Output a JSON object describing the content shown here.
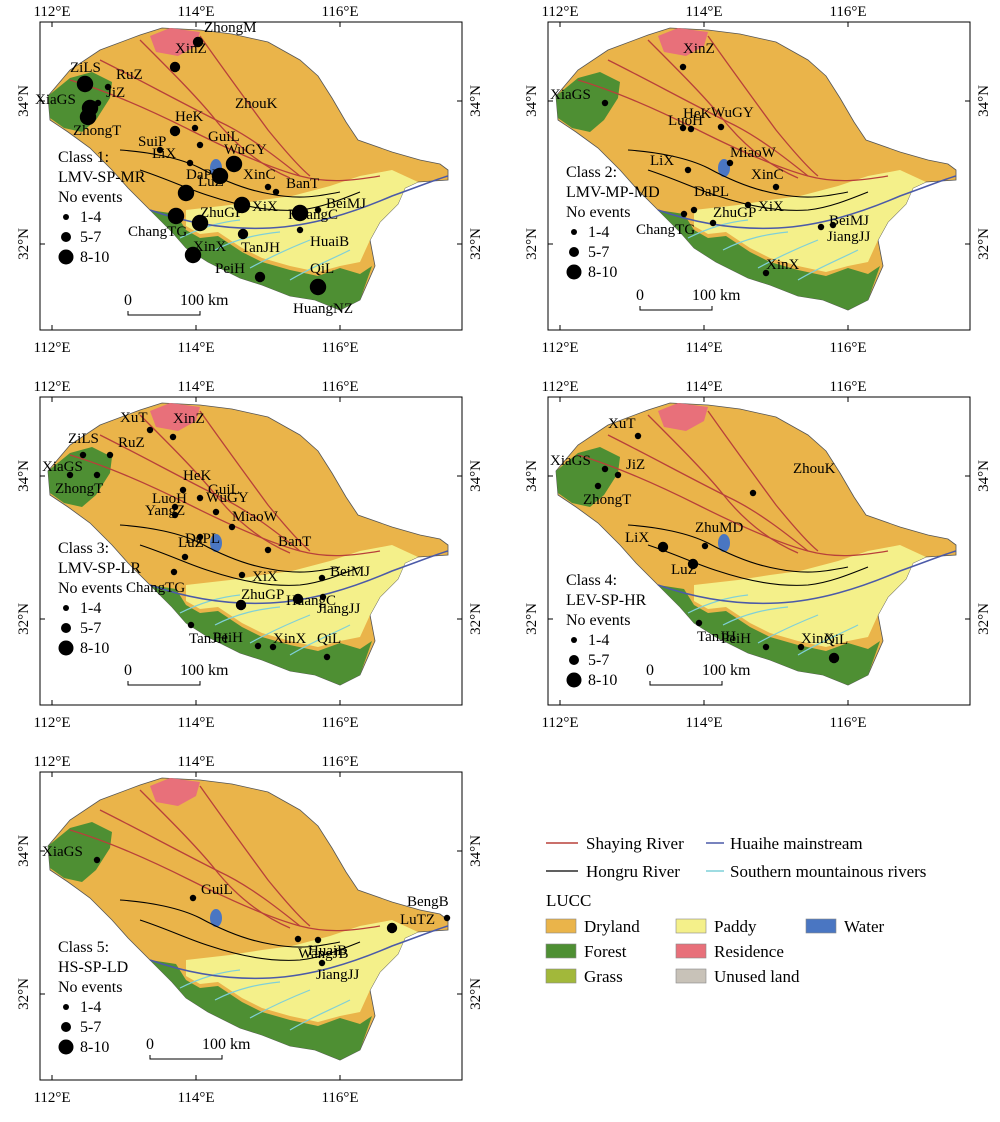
{
  "axes": {
    "lon_labels": [
      "112°E",
      "114°E",
      "116°E"
    ],
    "lat_labels": [
      "34°N",
      "32°N"
    ]
  },
  "panels": [
    {
      "class_label": "Class 1:",
      "class_code": "LMV-SP-MR",
      "events_label": "No events",
      "sizes": [
        "1-4",
        "5-7",
        "8-10"
      ],
      "scalebar": {
        "start": "0",
        "end": "100 km"
      },
      "stations": [
        {
          "name": "ZhongM",
          "size": 2
        },
        {
          "name": "ZiLS",
          "size": 3
        },
        {
          "name": "RuZ",
          "size": 1
        },
        {
          "name": "XinZ",
          "size": 2
        },
        {
          "name": "XiaGS",
          "size": 3
        },
        {
          "name": "JiZ",
          "size": 1
        },
        {
          "name": "ZhongT",
          "size": 3
        },
        {
          "name": "HeK",
          "size": 2
        },
        {
          "name": "ZhouK",
          "size": 1
        },
        {
          "name": "GuiL",
          "size": 1
        },
        {
          "name": "SuiP",
          "size": 1
        },
        {
          "name": "WuGY",
          "size": 3
        },
        {
          "name": "LiX",
          "size": 1
        },
        {
          "name": "LuZ",
          "size": 3
        },
        {
          "name": "XinC",
          "size": 1
        },
        {
          "name": "BanT",
          "size": 1
        },
        {
          "name": "DaPL",
          "size": 3
        },
        {
          "name": "XiX",
          "size": 3
        },
        {
          "name": "ZhuGP",
          "size": 3
        },
        {
          "name": "HuangC",
          "size": 3
        },
        {
          "name": "BeiMJ",
          "size": 1
        },
        {
          "name": "ChangTG",
          "size": 3
        },
        {
          "name": "TanJH",
          "size": 2
        },
        {
          "name": "HuaiB",
          "size": 1
        },
        {
          "name": "PeiH",
          "size": 2
        },
        {
          "name": "XinX",
          "size": 3
        },
        {
          "name": "QiL",
          "size": 1
        },
        {
          "name": "HuangNZ",
          "size": 3
        }
      ]
    },
    {
      "class_label": "Class 2:",
      "class_code": "LMV-MP-MD",
      "events_label": "No events",
      "sizes": [
        "1-4",
        "5-7",
        "8-10"
      ],
      "scalebar": {
        "start": "0",
        "end": "100 km"
      },
      "stations": [
        {
          "name": "XinZ",
          "size": 1
        },
        {
          "name": "XiaGS",
          "size": 1
        },
        {
          "name": "HeK",
          "size": 1
        },
        {
          "name": "WuGY",
          "size": 1
        },
        {
          "name": "LuoH",
          "size": 1
        },
        {
          "name": "MiaoW",
          "size": 1
        },
        {
          "name": "LiX",
          "size": 1
        },
        {
          "name": "XinC",
          "size": 1
        },
        {
          "name": "DaPL",
          "size": 1
        },
        {
          "name": "XiX",
          "size": 1
        },
        {
          "name": "BeiMJ",
          "size": 1
        },
        {
          "name": "ZhuGP",
          "size": 1
        },
        {
          "name": "ChangTG",
          "size": 1
        },
        {
          "name": "JiangJJ",
          "size": 1
        },
        {
          "name": "XinX",
          "size": 1
        }
      ]
    },
    {
      "class_label": "Class 3:",
      "class_code": "LMV-SP-LR",
      "events_label": "No events",
      "sizes": [
        "1-4",
        "5-7",
        "8-10"
      ],
      "scalebar": {
        "start": "0",
        "end": "100 km"
      },
      "stations": [
        {
          "name": "XuT",
          "size": 1
        },
        {
          "name": "XinZ",
          "size": 1
        },
        {
          "name": "ZiLS",
          "size": 1
        },
        {
          "name": "RuZ",
          "size": 1
        },
        {
          "name": "ZhongT",
          "size": 1
        },
        {
          "name": "XiaGS",
          "size": 1
        },
        {
          "name": "HeK",
          "size": 1
        },
        {
          "name": "GuiL",
          "size": 1
        },
        {
          "name": "LuoH",
          "size": 1
        },
        {
          "name": "YangZ",
          "size": 1
        },
        {
          "name": "WuGY",
          "size": 1
        },
        {
          "name": "LuZ",
          "size": 1
        },
        {
          "name": "MiaoW",
          "size": 1
        },
        {
          "name": "BanT",
          "size": 1
        },
        {
          "name": "DaPL",
          "size": 1
        },
        {
          "name": "XiX",
          "size": 1
        },
        {
          "name": "BeiMJ",
          "size": 1
        },
        {
          "name": "ChangTG",
          "size": 1
        },
        {
          "name": "ZhuGP",
          "size": 2
        },
        {
          "name": "HuangC",
          "size": 2
        },
        {
          "name": "JiangJJ",
          "size": 1
        },
        {
          "name": "TanJH",
          "size": 1
        },
        {
          "name": "PeiH",
          "size": 1
        },
        {
          "name": "XinX",
          "size": 1
        },
        {
          "name": "QiL",
          "size": 1
        }
      ]
    },
    {
      "class_label": "Class 4:",
      "class_code": "LEV-SP-HR",
      "events_label": "No events",
      "sizes": [
        "1-4",
        "5-7",
        "8-10"
      ],
      "scalebar": {
        "start": "0",
        "end": "100 km"
      },
      "stations": [
        {
          "name": "XuT",
          "size": 1
        },
        {
          "name": "XiaGS",
          "size": 1
        },
        {
          "name": "JiZ",
          "size": 1
        },
        {
          "name": "ZhouK",
          "size": 1
        },
        {
          "name": "ZhongT",
          "size": 1
        },
        {
          "name": "LiX",
          "size": 2
        },
        {
          "name": "ZhuMD",
          "size": 1
        },
        {
          "name": "LuZ",
          "size": 2
        },
        {
          "name": "TanJH",
          "size": 1
        },
        {
          "name": "PeiH",
          "size": 1
        },
        {
          "name": "XinX",
          "size": 1
        },
        {
          "name": "QiL",
          "size": 2
        }
      ]
    },
    {
      "class_label": "Class 5:",
      "class_code": "HS-SP-LD",
      "events_label": "No events",
      "sizes": [
        "1-4",
        "5-7",
        "8-10"
      ],
      "scalebar": {
        "start": "0",
        "end": "100 km"
      },
      "stations": [
        {
          "name": "XiaGS",
          "size": 1
        },
        {
          "name": "GuiL",
          "size": 1
        },
        {
          "name": "BengB",
          "size": 1
        },
        {
          "name": "LuTZ",
          "size": 2
        },
        {
          "name": "HuaiB",
          "size": 1
        },
        {
          "name": "WangJB",
          "size": 1
        },
        {
          "name": "JiangJJ",
          "size": 1
        }
      ]
    }
  ],
  "legend": {
    "rivers": [
      {
        "label": "Shaying River",
        "color": "#b8403a"
      },
      {
        "label": "Huaihe mainstream",
        "color": "#4b5aa8"
      },
      {
        "label": "Hongru River",
        "color": "#000000"
      },
      {
        "label": "Southern mountainous rivers",
        "color": "#7fd0d8"
      }
    ],
    "lucc_title": "LUCC",
    "classes": [
      {
        "label": "Dryland",
        "color": "#eab44a"
      },
      {
        "label": "Paddy",
        "color": "#f4f08a"
      },
      {
        "label": "Water",
        "color": "#4a76c2"
      },
      {
        "label": "Forest",
        "color": "#4e8f33"
      },
      {
        "label": "Residence",
        "color": "#e8707a"
      },
      {
        "label": "Grass",
        "color": "#a2b83a"
      },
      {
        "label": "Unused land",
        "color": "#c8c2b8"
      }
    ]
  }
}
